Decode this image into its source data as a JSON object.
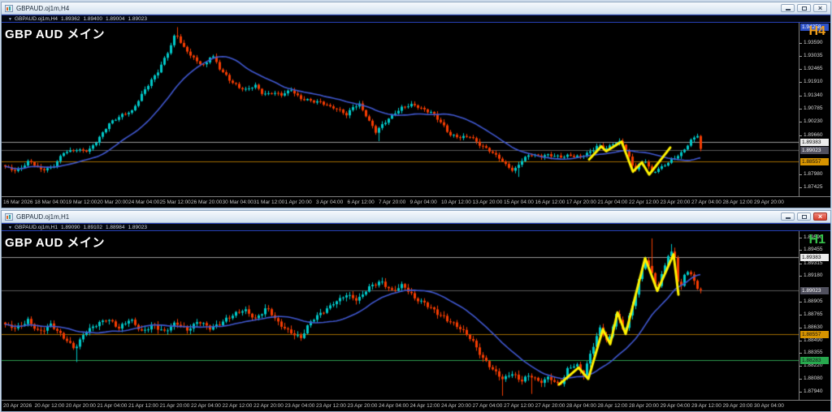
{
  "windows": [
    {
      "title": "GBPAUD.oj1m,H4",
      "buttons": {
        "close_glyph": "×"
      },
      "info": {
        "marker": "▼",
        "symbol": "GBPAUD.oj1m,H4",
        "open": "1.89362",
        "high": "1.89400",
        "low": "1.89004",
        "close": "1.89023"
      },
      "overlay_title": "GBP AUD メイン",
      "timeframe": {
        "label": "H4",
        "color": "#F5A21B"
      },
      "scale": {
        "top_price": 1.9437,
        "bottom_price": 1.8723,
        "ticks": [
          1.9359,
          1.93035,
          1.92465,
          1.9191,
          1.9134,
          1.90785,
          1.9023,
          1.8966,
          1.8798,
          1.87425
        ],
        "boxes": [
          {
            "text": "1.94258",
            "pin": "top",
            "bg": "#2E52C8",
            "fg": "#FFFFFF"
          },
          {
            "text": "1.89383",
            "price": 1.89383,
            "bg": "#EDEDED",
            "fg": "#000000"
          },
          {
            "text": "1.89023",
            "price": 1.89023,
            "bg": "#50505E",
            "fg": "#FFFFFF"
          },
          {
            "text": "1.88557",
            "price": 1.88557,
            "bg": "#D79400",
            "fg": "#101010"
          }
        ]
      },
      "hlines": [
        {
          "price": 1.89383,
          "color": "#9A9A9A"
        },
        {
          "price": 1.89023,
          "color": "#5A5A5A"
        },
        {
          "price": 1.88557,
          "color": "#A36D00"
        }
      ],
      "series": {
        "count": 215,
        "x0": 4,
        "dx": 4,
        "wiggle": 0.0006,
        "wick": 0.0013,
        "up": "#00C9C9",
        "down": "#F53C02",
        "path": [
          [
            4,
            1.8832
          ],
          [
            18,
            1.8812
          ],
          [
            34,
            1.8856
          ],
          [
            48,
            1.882
          ],
          [
            62,
            1.8826
          ],
          [
            76,
            1.8893
          ],
          [
            92,
            1.8903
          ],
          [
            106,
            1.8898
          ],
          [
            118,
            1.8946
          ],
          [
            132,
            1.9015
          ],
          [
            146,
            1.9048
          ],
          [
            160,
            1.9068
          ],
          [
            176,
            1.916
          ],
          [
            192,
            1.9238
          ],
          [
            206,
            1.933
          ],
          [
            214,
            1.9403
          ],
          [
            222,
            1.9345
          ],
          [
            232,
            1.9307
          ],
          [
            240,
            1.928
          ],
          [
            250,
            1.926
          ],
          [
            258,
            1.9312
          ],
          [
            268,
            1.925
          ],
          [
            280,
            1.92
          ],
          [
            292,
            1.9168
          ],
          [
            300,
            1.9158
          ],
          [
            312,
            1.9178
          ],
          [
            322,
            1.9138
          ],
          [
            334,
            1.9146
          ],
          [
            344,
            1.9138
          ],
          [
            356,
            1.9158
          ],
          [
            368,
            1.912
          ],
          [
            380,
            1.9112
          ],
          [
            392,
            1.9106
          ],
          [
            404,
            1.9086
          ],
          [
            416,
            1.9072
          ],
          [
            424,
            1.9052
          ],
          [
            432,
            1.9086
          ],
          [
            440,
            1.9096
          ],
          [
            450,
            1.9036
          ],
          [
            460,
            1.898
          ],
          [
            470,
            1.9016
          ],
          [
            482,
            1.9056
          ],
          [
            494,
            1.9086
          ],
          [
            506,
            1.9096
          ],
          [
            518,
            1.9076
          ],
          [
            530,
            1.906
          ],
          [
            540,
            1.902
          ],
          [
            552,
            1.8966
          ],
          [
            564,
            1.8956
          ],
          [
            576,
            1.896
          ],
          [
            588,
            1.8926
          ],
          [
            600,
            1.89
          ],
          [
            612,
            1.8868
          ],
          [
            622,
            1.8834
          ],
          [
            630,
            1.8812
          ],
          [
            640,
            1.886
          ],
          [
            650,
            1.8884
          ],
          [
            662,
            1.8876
          ],
          [
            674,
            1.8882
          ],
          [
            686,
            1.8872
          ],
          [
            698,
            1.888
          ],
          [
            710,
            1.8872
          ],
          [
            722,
            1.889
          ],
          [
            734,
            1.8924
          ],
          [
            742,
            1.8904
          ],
          [
            752,
            1.893
          ],
          [
            762,
            1.894
          ],
          [
            770,
            1.889
          ],
          [
            778,
            1.8818
          ],
          [
            786,
            1.8846
          ],
          [
            792,
            1.8856
          ],
          [
            800,
            1.8806
          ],
          [
            808,
            1.8822
          ],
          [
            818,
            1.8844
          ],
          [
            828,
            1.8868
          ],
          [
            838,
            1.8896
          ],
          [
            848,
            1.8944
          ],
          [
            856,
            1.8966
          ],
          [
            860,
            1.8905
          ]
        ],
        "spikes": [
          {
            "x": 214,
            "high": 1.9425
          },
          {
            "x": 462,
            "low": 1.894
          },
          {
            "x": 634,
            "low": 1.8788
          },
          {
            "x": 856,
            "high": 1.8972
          }
        ]
      },
      "ma": {
        "window": 21,
        "color": "#4058D0"
      },
      "zigzag": {
        "color": "#FFF200",
        "points": [
          [
            723,
            1.8862
          ],
          [
            738,
            1.8918
          ],
          [
            744,
            1.8897
          ],
          [
            763,
            1.8938
          ],
          [
            777,
            1.881
          ],
          [
            788,
            1.885
          ],
          [
            797,
            1.8798
          ],
          [
            823,
            1.8913
          ]
        ]
      },
      "time_axis": [
        "16 Mar 2026",
        "18 Mar 04:00",
        "19 Mar 12:00",
        "20 Mar 20:00",
        "24 Mar 04:00",
        "25 Mar 12:00",
        "26 Mar 20:00",
        "30 Mar 04:00",
        "31 Mar 12:00",
        "1 Apr 20:00",
        "3 Apr 04:00",
        "6 Apr 12:00",
        "7 Apr 20:00",
        "9 Apr 04:00",
        "10 Apr 12:00",
        "13 Apr 20:00",
        "15 Apr 04:00",
        "16 Apr 12:00",
        "17 Apr 20:00",
        "21 Apr 04:00",
        "22 Apr 12:00",
        "23 Apr 20:00",
        "27 Apr 04:00",
        "28 Apr 12:00",
        "29 Apr 20:00"
      ]
    },
    {
      "title": "GBPAUD.oj1m,H1",
      "buttons": {
        "close_glyph": "×"
      },
      "info": {
        "marker": "▼",
        "symbol": "GBPAUD.oj1m,H1",
        "open": "1.89090",
        "high": "1.89102",
        "low": "1.88984",
        "close": "1.89023"
      },
      "overlay_title": "GBP AUD メイン",
      "timeframe": {
        "label": "H1",
        "color": "#36C24A"
      },
      "scale": {
        "top_price": 1.8964,
        "bottom_price": 1.879,
        "ticks": [
          1.8959,
          1.89455,
          1.89315,
          1.8918,
          1.88905,
          1.88765,
          1.8863,
          1.8849,
          1.88355,
          1.8822,
          1.8808,
          1.8794
        ],
        "boxes": [
          {
            "text": "1.89383",
            "price": 1.89383,
            "bg": "#EDEDED",
            "fg": "#000000"
          },
          {
            "text": "1.89023",
            "price": 1.89023,
            "bg": "#50505E",
            "fg": "#FFFFFF"
          },
          {
            "text": "1.88557",
            "price": 1.88557,
            "bg": "#D79400",
            "fg": "#101010"
          },
          {
            "text": "1.88283",
            "price": 1.88283,
            "bg": "#27A84E",
            "fg": "#101010"
          }
        ]
      },
      "hlines": [
        {
          "price": 1.89383,
          "color": "#9A9A9A"
        },
        {
          "price": 1.89023,
          "color": "#5A5A5A"
        },
        {
          "price": 1.88557,
          "color": "#A36D00"
        },
        {
          "price": 1.88283,
          "color": "#2E9E4F"
        }
      ],
      "series": {
        "count": 215,
        "x0": 4,
        "dx": 4,
        "wiggle": 0.00022,
        "wick": 0.00045,
        "up": "#00C9C9",
        "down": "#F53C02",
        "path": [
          [
            4,
            1.8866
          ],
          [
            18,
            1.8862
          ],
          [
            32,
            1.887
          ],
          [
            46,
            1.8858
          ],
          [
            60,
            1.8866
          ],
          [
            74,
            1.8854
          ],
          [
            90,
            1.884
          ],
          [
            102,
            1.8858
          ],
          [
            116,
            1.8866
          ],
          [
            130,
            1.8872
          ],
          [
            144,
            1.8862
          ],
          [
            158,
            1.8872
          ],
          [
            172,
            1.8858
          ],
          [
            186,
            1.8866
          ],
          [
            200,
            1.8858
          ],
          [
            214,
            1.8868
          ],
          [
            228,
            1.886
          ],
          [
            242,
            1.887
          ],
          [
            256,
            1.8862
          ],
          [
            270,
            1.8868
          ],
          [
            284,
            1.8876
          ],
          [
            298,
            1.8882
          ],
          [
            312,
            1.8872
          ],
          [
            326,
            1.8884
          ],
          [
            340,
            1.8868
          ],
          [
            354,
            1.8858
          ],
          [
            368,
            1.8852
          ],
          [
            382,
            1.8872
          ],
          [
            396,
            1.888
          ],
          [
            410,
            1.889
          ],
          [
            424,
            1.8898
          ],
          [
            438,
            1.8892
          ],
          [
            452,
            1.8906
          ],
          [
            466,
            1.8912
          ],
          [
            480,
            1.8902
          ],
          [
            494,
            1.8908
          ],
          [
            508,
            1.8894
          ],
          [
            522,
            1.8888
          ],
          [
            536,
            1.8878
          ],
          [
            550,
            1.887
          ],
          [
            564,
            1.8862
          ],
          [
            578,
            1.885
          ],
          [
            592,
            1.883
          ],
          [
            604,
            1.8818
          ],
          [
            616,
            1.8808
          ],
          [
            628,
            1.8814
          ],
          [
            638,
            1.8806
          ],
          [
            650,
            1.8812
          ],
          [
            662,
            1.8804
          ],
          [
            674,
            1.881
          ],
          [
            686,
            1.88
          ],
          [
            696,
            1.8818
          ],
          [
            706,
            1.8824
          ],
          [
            716,
            1.8812
          ],
          [
            726,
            1.884
          ],
          [
            736,
            1.8862
          ],
          [
            746,
            1.8846
          ],
          [
            756,
            1.8878
          ],
          [
            766,
            1.8858
          ],
          [
            776,
            1.8886
          ],
          [
            786,
            1.892
          ],
          [
            792,
            1.8936
          ],
          [
            800,
            1.892
          ],
          [
            807,
            1.8904
          ],
          [
            815,
            1.8928
          ],
          [
            822,
            1.8944
          ],
          [
            828,
            1.8938
          ],
          [
            834,
            1.89
          ],
          [
            842,
            1.8926
          ],
          [
            850,
            1.8916
          ],
          [
            858,
            1.8902
          ]
        ],
        "spikes": [
          {
            "x": 90,
            "low": 1.8826
          },
          {
            "x": 616,
            "low": 1.879
          },
          {
            "x": 650,
            "low": 1.8792
          },
          {
            "x": 800,
            "high": 1.8958
          },
          {
            "x": 822,
            "high": 1.8952
          }
        ]
      },
      "ma": {
        "window": 21,
        "color": "#4058D0"
      },
      "zigzag": {
        "color": "#FFF200",
        "points": [
          [
            686,
            1.8802
          ],
          [
            710,
            1.882
          ],
          [
            722,
            1.8808
          ],
          [
            740,
            1.8861
          ],
          [
            749,
            1.8845
          ],
          [
            758,
            1.8879
          ],
          [
            768,
            1.8856
          ],
          [
            792,
            1.8937
          ],
          [
            807,
            1.8902
          ],
          [
            827,
            1.8941
          ],
          [
            833,
            1.8898
          ]
        ]
      },
      "time_axis": [
        "20 Apr 2026",
        "20 Apr 12:00",
        "20 Apr 20:00",
        "21 Apr 04:00",
        "21 Apr 12:00",
        "21 Apr 20:00",
        "22 Apr 04:00",
        "22 Apr 12:00",
        "22 Apr 20:00",
        "23 Apr 04:00",
        "23 Apr 12:00",
        "23 Apr 20:00",
        "24 Apr 04:00",
        "24 Apr 12:00",
        "24 Apr 20:00",
        "27 Apr 04:00",
        "27 Apr 12:00",
        "27 Apr 20:00",
        "28 Apr 04:00",
        "28 Apr 12:00",
        "28 Apr 20:00",
        "29 Apr 04:00",
        "29 Apr 12:00",
        "29 Apr 20:00",
        "30 Apr 04:00"
      ]
    }
  ]
}
